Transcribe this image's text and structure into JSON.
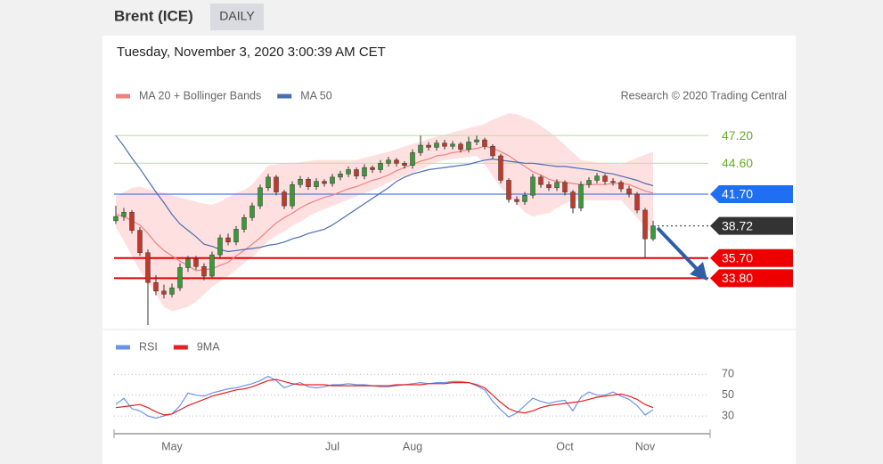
{
  "header": {
    "title": "Brent (ICE)",
    "timeframe": "DAILY"
  },
  "chart_data": [
    {
      "type": "candlestick",
      "subtitle": "Tuesday, November 3, 2020 3:00:39 AM CET",
      "annotation": "Research © 2020 Trading Central",
      "ylim": [
        29.4,
        49.9
      ],
      "up_color": "#3a9a3a",
      "down_color": "#c0392b",
      "ohlc": [
        [
          39.2,
          40.6,
          38.9,
          39.6
        ],
        [
          39.6,
          40.4,
          39.2,
          40.0
        ],
        [
          40.0,
          40.2,
          38.0,
          38.3
        ],
        [
          38.3,
          38.6,
          35.9,
          36.2
        ],
        [
          36.2,
          36.5,
          29.4,
          33.4
        ],
        [
          33.4,
          34.1,
          32.2,
          32.6
        ],
        [
          32.6,
          33.2,
          31.9,
          32.3
        ],
        [
          32.3,
          33.3,
          32.0,
          32.9
        ],
        [
          32.9,
          35.2,
          32.6,
          34.8
        ],
        [
          34.8,
          35.9,
          34.4,
          35.6
        ],
        [
          35.6,
          35.9,
          34.6,
          34.9
        ],
        [
          34.9,
          35.2,
          33.6,
          34.0
        ],
        [
          34.0,
          36.3,
          33.8,
          36.0
        ],
        [
          36.0,
          37.9,
          35.7,
          37.6
        ],
        [
          37.6,
          38.0,
          36.9,
          37.2
        ],
        [
          37.2,
          38.7,
          36.9,
          38.4
        ],
        [
          38.4,
          39.8,
          38.1,
          39.5
        ],
        [
          39.5,
          40.9,
          39.2,
          40.6
        ],
        [
          40.6,
          42.6,
          40.3,
          42.3
        ],
        [
          42.3,
          43.6,
          42.0,
          43.3
        ],
        [
          43.3,
          43.5,
          41.6,
          41.9
        ],
        [
          41.9,
          42.1,
          40.3,
          40.6
        ],
        [
          40.6,
          42.9,
          40.3,
          42.6
        ],
        [
          42.6,
          43.4,
          42.3,
          43.1
        ],
        [
          43.1,
          43.3,
          42.1,
          42.4
        ],
        [
          42.4,
          43.2,
          42.1,
          42.9
        ],
        [
          42.9,
          43.1,
          42.4,
          42.7
        ],
        [
          42.7,
          43.6,
          42.4,
          43.3
        ],
        [
          43.3,
          43.9,
          43.0,
          43.6
        ],
        [
          43.6,
          44.3,
          43.3,
          44.0
        ],
        [
          44.0,
          44.2,
          43.1,
          43.4
        ],
        [
          43.4,
          44.5,
          43.1,
          44.2
        ],
        [
          44.2,
          44.4,
          43.7,
          44.0
        ],
        [
          44.0,
          44.9,
          43.7,
          44.6
        ],
        [
          44.6,
          45.2,
          44.3,
          44.9
        ],
        [
          44.9,
          45.1,
          44.3,
          44.6
        ],
        [
          44.6,
          44.8,
          44.1,
          44.4
        ],
        [
          44.4,
          45.9,
          44.1,
          45.6
        ],
        [
          45.6,
          47.2,
          45.3,
          46.3
        ],
        [
          46.3,
          46.6,
          45.8,
          46.1
        ],
        [
          46.1,
          46.8,
          45.8,
          46.5
        ],
        [
          46.5,
          46.8,
          45.9,
          46.2
        ],
        [
          46.2,
          46.7,
          45.9,
          46.4
        ],
        [
          46.4,
          46.6,
          45.6,
          45.9
        ],
        [
          45.9,
          47.1,
          45.6,
          46.6
        ],
        [
          46.6,
          47.2,
          46.3,
          46.8
        ],
        [
          46.8,
          47.0,
          45.9,
          46.2
        ],
        [
          46.2,
          46.4,
          45.0,
          45.3
        ],
        [
          45.3,
          45.5,
          42.7,
          43.0
        ],
        [
          43.0,
          43.2,
          40.9,
          41.2
        ],
        [
          41.2,
          41.5,
          40.7,
          41.0
        ],
        [
          41.0,
          41.9,
          40.7,
          41.6
        ],
        [
          41.6,
          43.6,
          41.3,
          43.3
        ],
        [
          43.3,
          43.5,
          42.3,
          42.6
        ],
        [
          42.6,
          42.9,
          42.0,
          42.3
        ],
        [
          42.3,
          43.1,
          42.0,
          42.8
        ],
        [
          42.8,
          43.0,
          41.6,
          41.9
        ],
        [
          41.9,
          42.1,
          39.9,
          40.4
        ],
        [
          40.4,
          42.9,
          40.1,
          42.6
        ],
        [
          42.6,
          43.3,
          42.3,
          43.0
        ],
        [
          43.0,
          43.7,
          42.7,
          43.4
        ],
        [
          43.4,
          43.6,
          42.6,
          42.9
        ],
        [
          42.9,
          43.2,
          42.5,
          42.8
        ],
        [
          42.8,
          43.0,
          41.9,
          42.2
        ],
        [
          42.2,
          42.5,
          41.4,
          41.7
        ],
        [
          41.7,
          41.9,
          39.9,
          40.2
        ],
        [
          40.2,
          40.4,
          35.7,
          37.5
        ],
        [
          37.5,
          39.2,
          37.3,
          38.72
        ]
      ],
      "series": [
        {
          "name": "MA 20 + Bollinger Bands",
          "color": "#f08080",
          "band_color": "#ffd6d6",
          "values": [
            39.8,
            39.6,
            39.2,
            38.8,
            38.0,
            37.1,
            36.4,
            35.9,
            35.4,
            35.0,
            34.5,
            34.6,
            34.7,
            35.0,
            35.3,
            35.9,
            36.4,
            37.0,
            37.6,
            38.3,
            39.0,
            39.5,
            39.9,
            40.4,
            40.8,
            41.1,
            41.4,
            41.6,
            41.9,
            42.2,
            42.4,
            42.7,
            43.0,
            43.2,
            43.5,
            43.9,
            44.2,
            44.5,
            44.8,
            45.0,
            45.3,
            45.4,
            45.6,
            45.7,
            45.9,
            46.0,
            46.2,
            46.0,
            45.7,
            45.3,
            44.8,
            44.3,
            43.8,
            43.5,
            43.1,
            42.9,
            42.8,
            42.7,
            42.6,
            42.6,
            42.6,
            42.6,
            42.7,
            42.7,
            42.6,
            42.3,
            42.0,
            41.8
          ],
          "upper": [
            41.5,
            41.9,
            42.3,
            42.4,
            42.2,
            42.0,
            41.8,
            41.6,
            41.4,
            41.2,
            41.0,
            40.8,
            40.7,
            41.0,
            41.4,
            41.8,
            42.1,
            42.6,
            43.5,
            44.4,
            44.5,
            44.6,
            44.6,
            44.7,
            44.8,
            44.9,
            44.9,
            44.9,
            44.9,
            44.9,
            44.9,
            45.1,
            45.3,
            45.5,
            45.7,
            45.9,
            46.2,
            46.4,
            46.6,
            46.9,
            47.1,
            47.3,
            47.5,
            47.7,
            47.9,
            48.1,
            48.3,
            48.7,
            49.0,
            49.3,
            49.2,
            48.9,
            48.6,
            48.1,
            47.6,
            47.0,
            46.3,
            45.6,
            44.9,
            44.8,
            44.7,
            44.6,
            44.6,
            44.5,
            44.8,
            45.1,
            45.4,
            45.7
          ],
          "lower": [
            38.6,
            37.3,
            35.9,
            34.5,
            33.4,
            32.3,
            31.1,
            30.7,
            30.9,
            31.1,
            31.6,
            32.3,
            33.0,
            33.5,
            34.0,
            34.6,
            35.2,
            35.8,
            36.5,
            37.3,
            37.8,
            38.2,
            38.7,
            39.1,
            39.6,
            40.0,
            40.3,
            40.6,
            40.9,
            41.2,
            41.5,
            41.8,
            42.1,
            42.4,
            42.8,
            43.1,
            43.4,
            43.7,
            44.0,
            44.4,
            44.7,
            44.9,
            45.0,
            45.1,
            45.2,
            45.3,
            44.5,
            43.4,
            42.3,
            41.6,
            40.8,
            40.0,
            39.6,
            39.8,
            39.9,
            40.4,
            40.8,
            41.1,
            41.1,
            41.1,
            41.1,
            41.1,
            41.1,
            41.1,
            40.3,
            39.5,
            38.6,
            37.8
          ]
        },
        {
          "name": "MA 50",
          "color": "#4a6cb0",
          "values": [
            47.2,
            46.2,
            45.1,
            44.1,
            43.0,
            41.9,
            40.9,
            39.8,
            38.9,
            38.3,
            37.7,
            37.0,
            36.8,
            36.5,
            36.3,
            36.4,
            36.5,
            36.6,
            36.7,
            36.9,
            37.0,
            37.2,
            37.5,
            37.7,
            38.0,
            38.2,
            38.4,
            38.8,
            39.3,
            39.8,
            40.3,
            40.8,
            41.3,
            41.8,
            42.3,
            42.9,
            43.3,
            43.6,
            43.8,
            44.0,
            44.1,
            44.2,
            44.3,
            44.4,
            44.5,
            44.7,
            44.9,
            45.0,
            44.9,
            44.8,
            44.7,
            44.6,
            44.6,
            44.5,
            44.4,
            44.3,
            44.3,
            44.2,
            44.1,
            44.0,
            43.9,
            43.7,
            43.6,
            43.4,
            43.2,
            43.0,
            42.7,
            42.5
          ]
        }
      ],
      "levels": [
        {
          "value": 47.2,
          "label": "47.20",
          "color": "#6aab2e",
          "line_color": "#c8e2ad",
          "style": "solid",
          "boxed": false
        },
        {
          "value": 44.6,
          "label": "44.60",
          "color": "#6aab2e",
          "line_color": "#c8e2ad",
          "style": "solid",
          "boxed": false
        },
        {
          "value": 41.7,
          "label": "41.70",
          "color": "#1f6ff2",
          "line_color": "#4a7ee8",
          "style": "solid",
          "boxed": true
        },
        {
          "value": 38.72,
          "label": "38.72",
          "color": "#333333",
          "line_color": "#555555",
          "style": "dotted",
          "boxed": true
        },
        {
          "value": 35.7,
          "label": "35.70",
          "color": "#ee0000",
          "line_color": "#e60000",
          "style": "solid",
          "boxed": true
        },
        {
          "value": 33.8,
          "label": "33.80",
          "color": "#ee0000",
          "line_color": "#e60000",
          "style": "solid",
          "boxed": true
        }
      ]
    },
    {
      "type": "line",
      "categories": [
        null,
        null,
        null,
        null,
        null,
        null,
        null,
        "May",
        null,
        null,
        null,
        null,
        null,
        null,
        null,
        null,
        null,
        null,
        null,
        null,
        null,
        null,
        null,
        null,
        null,
        null,
        null,
        "Jul",
        null,
        null,
        null,
        null,
        null,
        null,
        null,
        null,
        null,
        "Aug",
        null,
        null,
        null,
        null,
        null,
        null,
        null,
        null,
        null,
        null,
        null,
        null,
        null,
        null,
        null,
        null,
        null,
        null,
        "Oct",
        null,
        null,
        null,
        null,
        null,
        null,
        null,
        null,
        null,
        "Nov",
        null
      ],
      "ylim": [
        19,
        83
      ],
      "yticks": [
        70,
        50,
        30
      ],
      "grid": true,
      "series": [
        {
          "name": "RSI",
          "color": "#6b93e8",
          "values": [
            41,
            47,
            37,
            35,
            30,
            28,
            30,
            32,
            40,
            52,
            50,
            49,
            52,
            54,
            56,
            57,
            59,
            61,
            64,
            68,
            64,
            57,
            60,
            62,
            58,
            57,
            58,
            60,
            60,
            61,
            60,
            60,
            59,
            58,
            58,
            59,
            60,
            61,
            62,
            61,
            62,
            62,
            63,
            63,
            62,
            59,
            55,
            44,
            36,
            29,
            33,
            40,
            47,
            44,
            42,
            44,
            45,
            35,
            48,
            53,
            50,
            50,
            53,
            49,
            46,
            40,
            31,
            36
          ]
        },
        {
          "name": "9MA",
          "color": "#e62020",
          "values": [
            38,
            39,
            40,
            41,
            38,
            34,
            31,
            32,
            36,
            40,
            43,
            46,
            49,
            51,
            53,
            55,
            56,
            58,
            61,
            64,
            65,
            63,
            61,
            60,
            60,
            60,
            60,
            59,
            59,
            59,
            59,
            59,
            59,
            59,
            59,
            60,
            60,
            60,
            60,
            61,
            61,
            61,
            62,
            62,
            62,
            60,
            57,
            50,
            43,
            37,
            34,
            33,
            35,
            38,
            40,
            41,
            42,
            43,
            44,
            46,
            48,
            49,
            50,
            51,
            49,
            46,
            41,
            38
          ]
        }
      ]
    }
  ]
}
